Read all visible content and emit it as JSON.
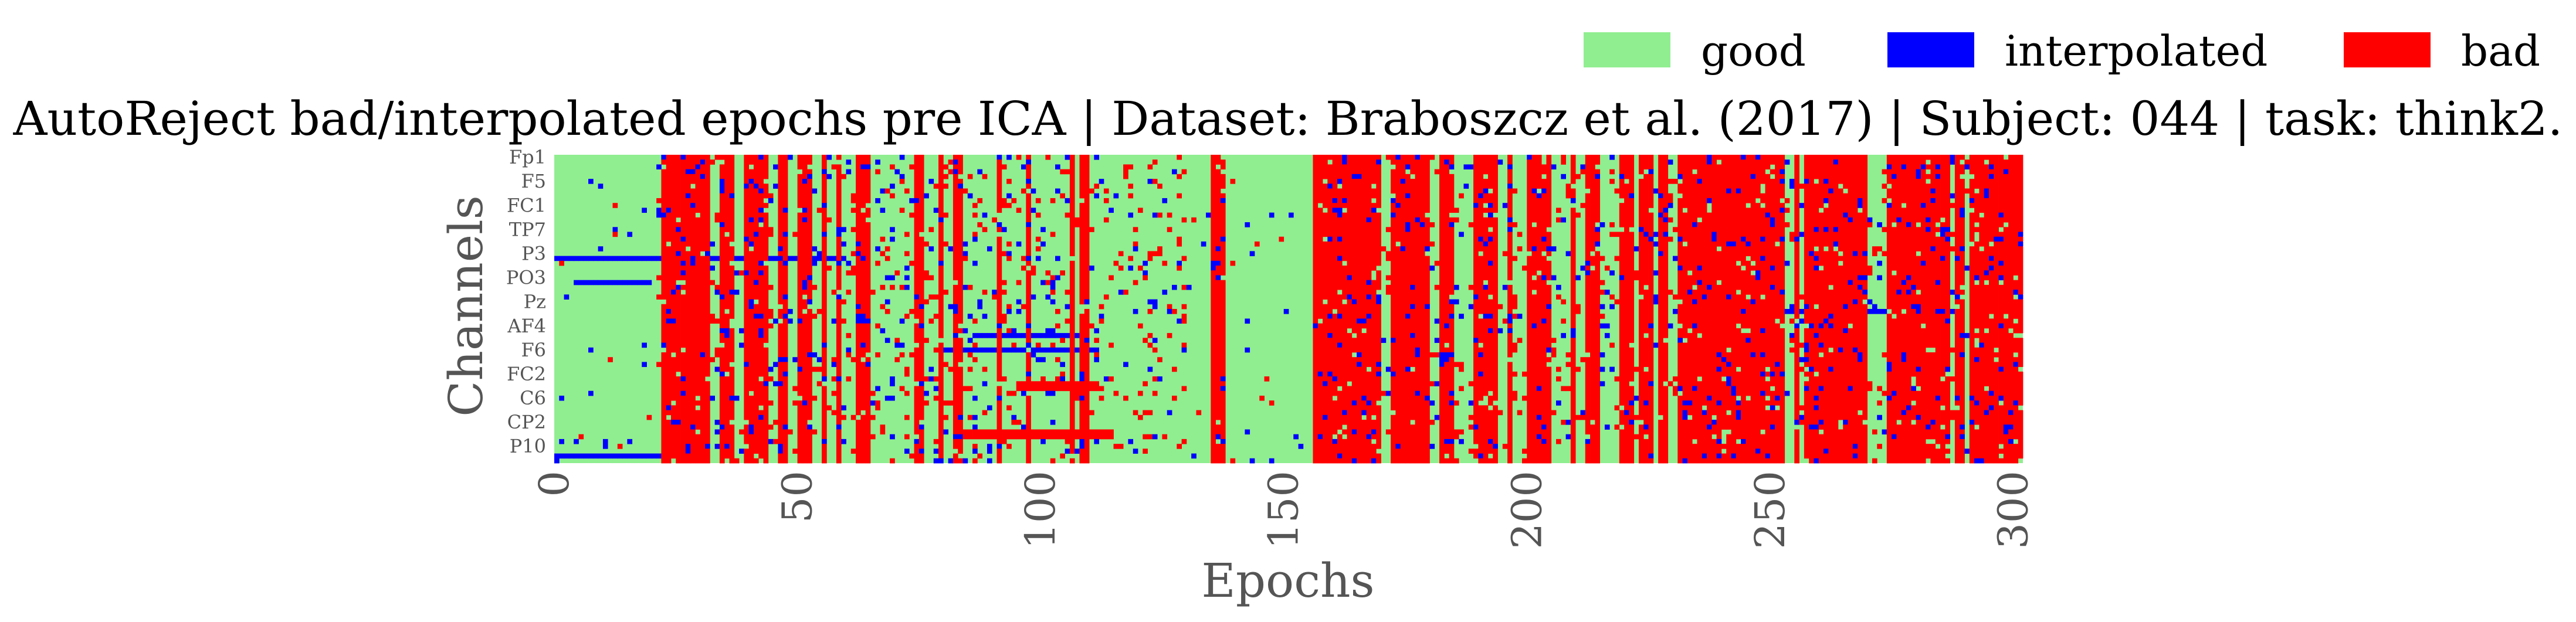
{
  "chart_data": {
    "type": "heatmap",
    "title": "AutoReject bad/interpolated epochs pre ICA | Dataset: Braboszcz et al. (2017) | Subject: 044 | task: think2.",
    "xlabel": "Epochs",
    "ylabel": "Channels",
    "xlim": [
      0,
      302
    ],
    "x_ticks": [
      0,
      50,
      100,
      150,
      200,
      250,
      300
    ],
    "n_epochs": 302,
    "n_channels": 64,
    "channel_tick_labels": [
      "Fp1",
      "F5",
      "FC1",
      "TP7",
      "P3",
      "PO3",
      "Pz",
      "AF4",
      "F6",
      "FC2",
      "C6",
      "CP2",
      "P10"
    ],
    "legend": [
      {
        "label": "good",
        "color": "#90ee90"
      },
      {
        "label": "interpolated",
        "color": "#0000ff"
      },
      {
        "label": "bad",
        "color": "#ff0000"
      }
    ],
    "legend_position": "top-right",
    "grid": false,
    "bad_epoch_ranges": [
      [
        22,
        32
      ],
      [
        34,
        37
      ],
      [
        39,
        44
      ],
      [
        46,
        48
      ],
      [
        50,
        53
      ],
      [
        55,
        56
      ],
      [
        58,
        59
      ],
      [
        62,
        65
      ],
      [
        74,
        76
      ],
      [
        79,
        80
      ],
      [
        82,
        84
      ],
      [
        91,
        92
      ],
      [
        97,
        98
      ],
      [
        106,
        107
      ],
      [
        108,
        110
      ],
      [
        135,
        138
      ],
      [
        156,
        170
      ],
      [
        172,
        180
      ],
      [
        182,
        185
      ],
      [
        189,
        194
      ],
      [
        196,
        197
      ],
      [
        200,
        205
      ],
      [
        209,
        210
      ],
      [
        212,
        215
      ],
      [
        219,
        222
      ],
      [
        223,
        226
      ],
      [
        227,
        229
      ],
      [
        231,
        253
      ],
      [
        255,
        256
      ],
      [
        257,
        270
      ],
      [
        274,
        287
      ],
      [
        288,
        290
      ],
      [
        291,
        302
      ]
    ]
  }
}
